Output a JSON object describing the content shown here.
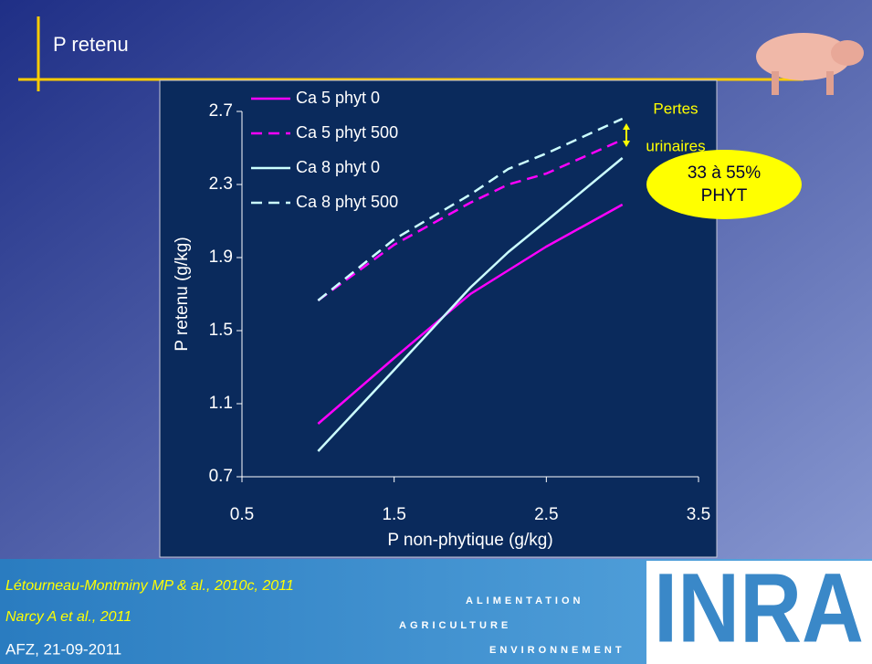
{
  "slide": {
    "title": "P retenu",
    "references": [
      "Létourneau-Montminy MP & al., 2010c, 2011",
      "Narcy A et al., 2011"
    ],
    "footer": "AFZ, 21-09-2011",
    "brand_lines": [
      "ALIMENTATION",
      "AGRICULTURE",
      "ENVIRONNEMENT"
    ],
    "logo": "INRA"
  },
  "chart_data": {
    "type": "line",
    "xlabel": "P non-phytique (g/kg)",
    "ylabel": "P retenu (g/kg)",
    "x": [
      1,
      1.5,
      2,
      2.25,
      2.5,
      3
    ],
    "series": [
      {
        "name": "Ca 5 phyt 0",
        "color": "#ff00ff",
        "dashed": false,
        "values": [
          0.99,
          1.35,
          1.7,
          1.83,
          1.96,
          2.19
        ]
      },
      {
        "name": "Ca 5 phyt 500",
        "color": "#ff00ff",
        "dashed": true,
        "values": [
          1.665,
          1.97,
          2.2,
          2.3,
          2.36,
          2.545
        ]
      },
      {
        "name": "Ca 8 phyt 0",
        "color": "#ccffff",
        "dashed": false,
        "values": [
          0.84,
          1.285,
          1.735,
          1.93,
          2.1,
          2.445
        ]
      },
      {
        "name": "Ca 8 phyt 500",
        "color": "#ccffff",
        "dashed": true,
        "values": [
          1.665,
          2.0,
          2.245,
          2.385,
          2.47,
          2.66
        ]
      }
    ],
    "xlim": [
      0.5,
      3.5
    ],
    "xticks": [
      0.5,
      1.5,
      2.5,
      3.5
    ],
    "ylim": [
      0.7,
      2.7
    ],
    "yticks": [
      0.7,
      1.1,
      1.5,
      1.9,
      2.3,
      2.7
    ],
    "annotations": [
      "Pertes",
      "urinaires",
      "33 à 55%",
      "PHYT"
    ]
  }
}
